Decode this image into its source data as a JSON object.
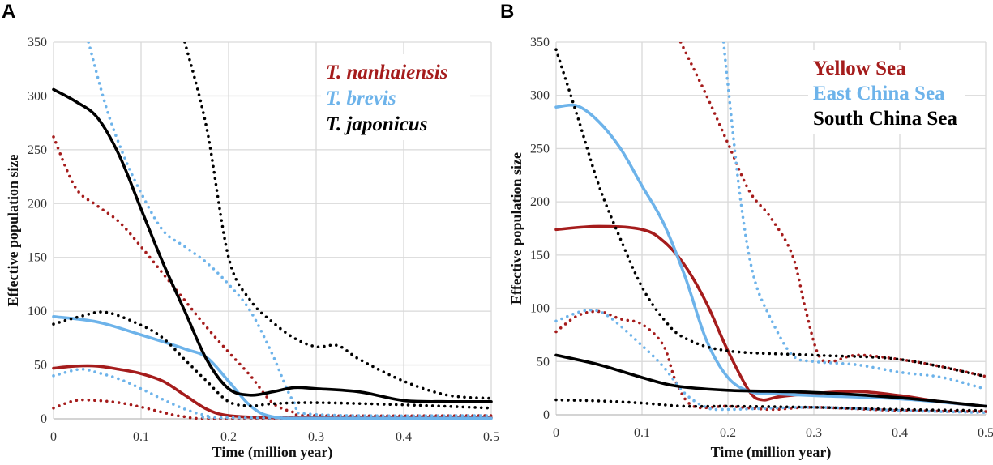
{
  "colors": {
    "red": "#a51c1c",
    "blue": "#6db3ea",
    "black": "#000000",
    "grid": "#d9d9d9"
  },
  "chart_data": [
    {
      "type": "line",
      "panel_label": "A",
      "xlabel": "Time (million year)",
      "ylabel": "Effective population size",
      "xlim": [
        0,
        0.5
      ],
      "ylim": [
        0,
        350
      ],
      "xticks": [
        "0",
        "0.1",
        "0.2",
        "0.3",
        "0.4",
        "0.5"
      ],
      "yticks": [
        "0",
        "50",
        "100",
        "150",
        "200",
        "250",
        "300",
        "350"
      ],
      "grid": true,
      "legend_italic": true,
      "legend_position": "top-right",
      "legend": [
        {
          "label": "T. nanhaiensis",
          "color": "red"
        },
        {
          "label": "T. brevis",
          "color": "blue"
        },
        {
          "label": "T. japonicus",
          "color": "black"
        }
      ],
      "series": [
        {
          "name": "T. nanhaiensis",
          "color": "red",
          "style": "solid",
          "x": [
            0,
            0.025,
            0.05,
            0.075,
            0.1,
            0.125,
            0.15,
            0.175,
            0.2,
            0.25,
            0.3,
            0.5
          ],
          "y": [
            47,
            49,
            49,
            46,
            42,
            35,
            22,
            9,
            3,
            1,
            1,
            1
          ]
        },
        {
          "name": "T. nanhaiensis upper",
          "color": "red",
          "style": "dotted",
          "x": [
            0,
            0.025,
            0.05,
            0.075,
            0.1,
            0.125,
            0.15,
            0.175,
            0.2,
            0.225,
            0.25,
            0.275,
            0.3,
            0.5
          ],
          "y": [
            262,
            215,
            198,
            183,
            160,
            135,
            110,
            85,
            62,
            40,
            15,
            6,
            3,
            3
          ]
        },
        {
          "name": "T. nanhaiensis lower",
          "color": "red",
          "style": "dotted",
          "x": [
            0,
            0.025,
            0.05,
            0.075,
            0.1,
            0.125,
            0.15,
            0.2,
            0.5
          ],
          "y": [
            10,
            17,
            17,
            15,
            11,
            6,
            2,
            0,
            0
          ]
        },
        {
          "name": "T. brevis",
          "color": "blue",
          "style": "solid",
          "x": [
            0,
            0.05,
            0.1,
            0.15,
            0.175,
            0.2,
            0.225,
            0.25,
            0.3,
            0.5
          ],
          "y": [
            95,
            90,
            78,
            65,
            57,
            35,
            12,
            2,
            0.5,
            0.5
          ]
        },
        {
          "name": "T. brevis upper",
          "color": "blue",
          "style": "dotted",
          "x": [
            0.04,
            0.06,
            0.08,
            0.1,
            0.125,
            0.15,
            0.175,
            0.2,
            0.225,
            0.25,
            0.275,
            0.3,
            0.5
          ],
          "y": [
            350,
            290,
            245,
            210,
            175,
            160,
            145,
            125,
            100,
            60,
            15,
            4,
            3
          ]
        },
        {
          "name": "T. brevis lower",
          "color": "blue",
          "style": "dotted",
          "x": [
            0,
            0.03,
            0.05,
            0.075,
            0.1,
            0.125,
            0.15,
            0.175,
            0.2,
            0.5
          ],
          "y": [
            40,
            46,
            43,
            37,
            28,
            18,
            9,
            3,
            1,
            0.5
          ]
        },
        {
          "name": "T. japonicus",
          "color": "black",
          "style": "solid",
          "x": [
            0,
            0.025,
            0.05,
            0.075,
            0.1,
            0.125,
            0.15,
            0.175,
            0.2,
            0.225,
            0.25,
            0.275,
            0.3,
            0.35,
            0.4,
            0.45,
            0.5
          ],
          "y": [
            306,
            295,
            280,
            245,
            195,
            145,
            100,
            55,
            28,
            22,
            25,
            29,
            28,
            25,
            17,
            16,
            16
          ]
        },
        {
          "name": "T. japonicus upper",
          "color": "black",
          "style": "dotted",
          "x": [
            0.15,
            0.175,
            0.2,
            0.225,
            0.25,
            0.275,
            0.3,
            0.325,
            0.35,
            0.4,
            0.45,
            0.5
          ],
          "y": [
            350,
            270,
            150,
            110,
            90,
            75,
            67,
            68,
            55,
            35,
            22,
            19
          ]
        },
        {
          "name": "T. japonicus lower",
          "color": "black",
          "style": "dotted",
          "x": [
            0,
            0.03,
            0.06,
            0.1,
            0.125,
            0.15,
            0.175,
            0.2,
            0.225,
            0.25,
            0.3,
            0.4,
            0.5
          ],
          "y": [
            88,
            95,
            99,
            87,
            75,
            55,
            35,
            16,
            12,
            14,
            15,
            13,
            10
          ]
        }
      ]
    },
    {
      "type": "line",
      "panel_label": "B",
      "xlabel": "Time (million year)",
      "ylabel": "Effective population size",
      "xlim": [
        0,
        0.5
      ],
      "ylim": [
        0,
        350
      ],
      "xticks": [
        "0",
        "0.1",
        "0.2",
        "0.3",
        "0.4",
        "0.5"
      ],
      "yticks": [
        "0",
        "50",
        "100",
        "150",
        "200",
        "250",
        "300",
        "350"
      ],
      "grid": true,
      "legend_italic": false,
      "legend_position": "top-right",
      "legend": [
        {
          "label": "Yellow Sea",
          "color": "red"
        },
        {
          "label": "East China Sea",
          "color": "blue"
        },
        {
          "label": "South China Sea",
          "color": "black"
        }
      ],
      "series": [
        {
          "name": "Yellow Sea",
          "color": "red",
          "style": "solid",
          "x": [
            0,
            0.05,
            0.1,
            0.125,
            0.15,
            0.175,
            0.2,
            0.225,
            0.24,
            0.26,
            0.3,
            0.35,
            0.4,
            0.45,
            0.5
          ],
          "y": [
            174,
            177,
            174,
            163,
            140,
            105,
            60,
            22,
            14,
            17,
            20,
            22,
            18,
            12,
            8
          ]
        },
        {
          "name": "Yellow Sea upper",
          "color": "red",
          "style": "dotted",
          "x": [
            0.145,
            0.175,
            0.2,
            0.225,
            0.25,
            0.275,
            0.29,
            0.305,
            0.32,
            0.35,
            0.4,
            0.45,
            0.5
          ],
          "y": [
            350,
            300,
            255,
            210,
            185,
            150,
            100,
            57,
            50,
            56,
            52,
            45,
            36
          ]
        },
        {
          "name": "Yellow Sea lower",
          "color": "red",
          "style": "dotted",
          "x": [
            0,
            0.025,
            0.05,
            0.075,
            0.1,
            0.125,
            0.14,
            0.16,
            0.2,
            0.25,
            0.3,
            0.4,
            0.5
          ],
          "y": [
            78,
            93,
            97,
            90,
            85,
            65,
            30,
            8,
            8,
            5,
            7,
            4,
            3
          ]
        },
        {
          "name": "East China Sea",
          "color": "blue",
          "style": "solid",
          "x": [
            0,
            0.025,
            0.05,
            0.075,
            0.1,
            0.125,
            0.15,
            0.175,
            0.2,
            0.225,
            0.25,
            0.3,
            0.4,
            0.5
          ],
          "y": [
            289,
            290,
            275,
            250,
            215,
            180,
            130,
            70,
            35,
            22,
            20,
            18,
            15,
            8
          ]
        },
        {
          "name": "East China Sea upper",
          "color": "blue",
          "style": "dotted",
          "x": [
            0.195,
            0.2,
            0.215,
            0.23,
            0.25,
            0.275,
            0.3,
            0.35,
            0.4,
            0.45,
            0.5
          ],
          "y": [
            350,
            310,
            200,
            130,
            90,
            56,
            50,
            47,
            40,
            35,
            24
          ]
        },
        {
          "name": "East China Sea lower",
          "color": "blue",
          "style": "dotted",
          "x": [
            0,
            0.035,
            0.06,
            0.1,
            0.125,
            0.15,
            0.175,
            0.2,
            0.3,
            0.4,
            0.5
          ],
          "y": [
            88,
            98,
            93,
            65,
            45,
            20,
            7,
            5,
            7,
            4,
            2
          ]
        },
        {
          "name": "South China Sea",
          "color": "black",
          "style": "solid",
          "x": [
            0,
            0.05,
            0.1,
            0.14,
            0.2,
            0.3,
            0.4,
            0.5
          ],
          "y": [
            56,
            47,
            35,
            27,
            23,
            21,
            16,
            8
          ]
        },
        {
          "name": "South China Sea upper",
          "color": "black",
          "style": "dotted",
          "x": [
            0,
            0.025,
            0.05,
            0.075,
            0.1,
            0.125,
            0.15,
            0.2,
            0.3,
            0.4,
            0.5
          ],
          "y": [
            343,
            280,
            215,
            165,
            120,
            90,
            72,
            60,
            56,
            52,
            36
          ]
        },
        {
          "name": "South China Sea lower",
          "color": "black",
          "style": "dotted",
          "x": [
            0,
            0.05,
            0.1,
            0.15,
            0.2,
            0.3,
            0.4,
            0.5
          ],
          "y": [
            14,
            13,
            11,
            8,
            8,
            7,
            5,
            4
          ]
        }
      ]
    }
  ]
}
